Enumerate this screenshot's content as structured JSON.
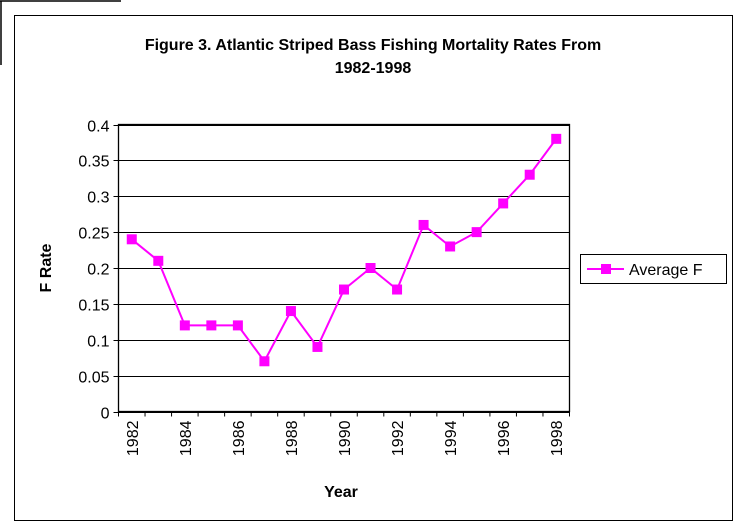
{
  "chart_data": {
    "type": "line",
    "title": "Figure 3.  Atlantic Striped Bass Fishing Mortality Rates From 1982-1998",
    "title_lines": [
      "Figure 3.  Atlantic Striped Bass Fishing Mortality Rates From",
      "1982-1998"
    ],
    "xlabel": "Year",
    "ylabel": "F Rate",
    "ylim": [
      0,
      0.4
    ],
    "yticks": [
      "0",
      "0.05",
      "0.1",
      "0.15",
      "0.2",
      "0.25",
      "0.3",
      "0.35",
      "0.4"
    ],
    "categories": [
      "1982",
      "1983",
      "1984",
      "1985",
      "1986",
      "1987",
      "1988",
      "1989",
      "1990",
      "1991",
      "1992",
      "1993",
      "1994",
      "1995",
      "1996",
      "1997",
      "1998"
    ],
    "xtick_labels": [
      "1982",
      "1984",
      "1986",
      "1988",
      "1990",
      "1992",
      "1994",
      "1996",
      "1998"
    ],
    "grid": true,
    "legend_position": "right",
    "series": [
      {
        "name": "Average F",
        "color": "#FF00FF",
        "values": [
          0.24,
          0.21,
          0.12,
          0.12,
          0.12,
          0.07,
          0.14,
          0.09,
          0.17,
          0.2,
          0.17,
          0.26,
          0.23,
          0.25,
          0.29,
          0.33,
          0.38
        ]
      }
    ]
  }
}
